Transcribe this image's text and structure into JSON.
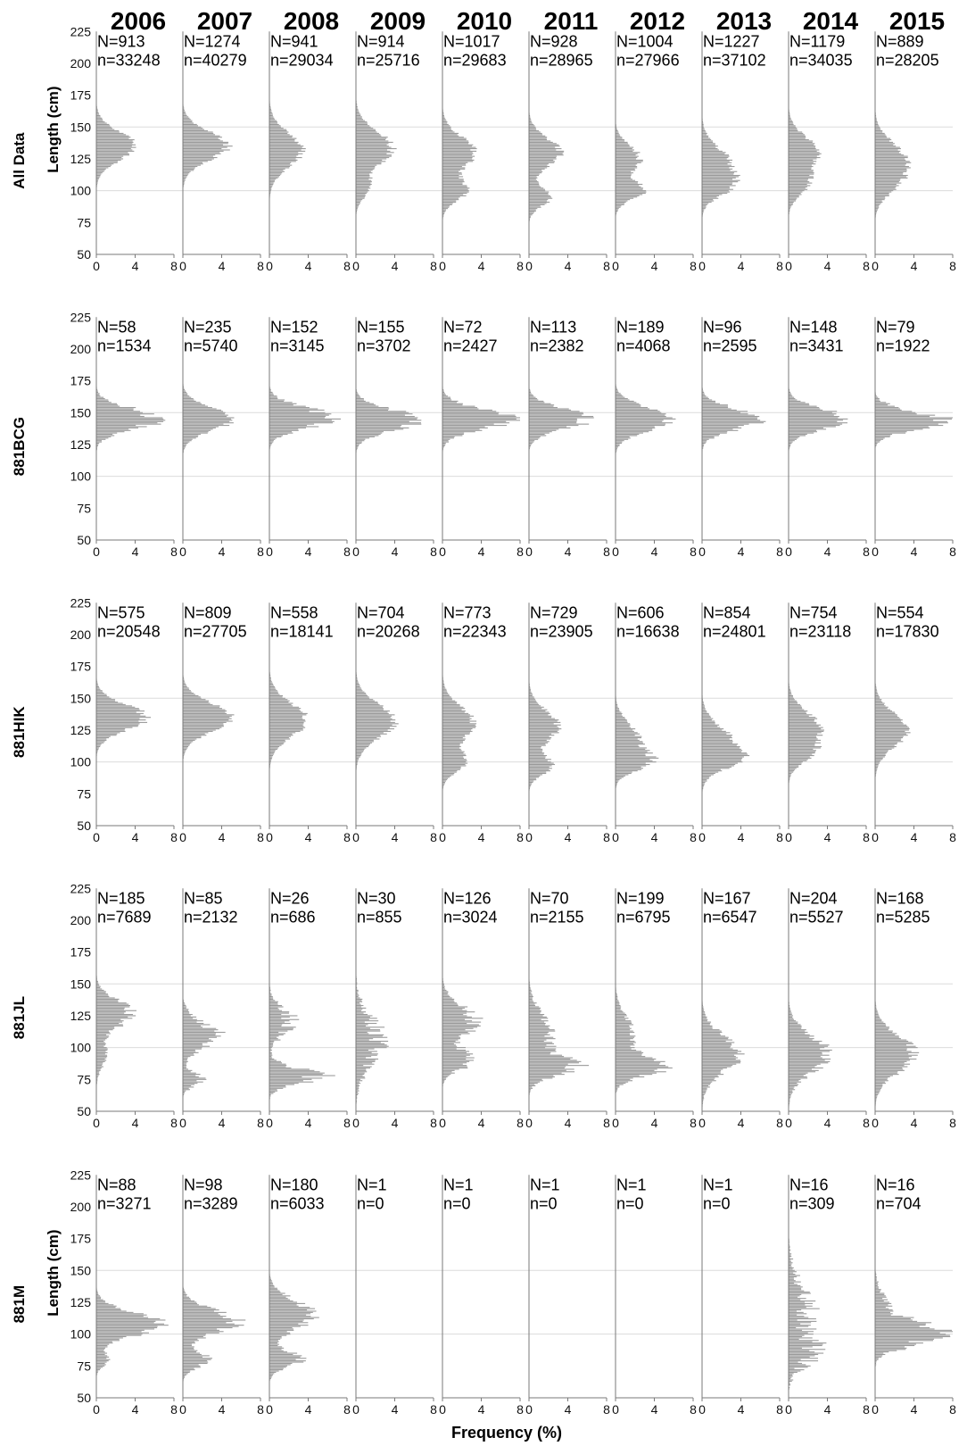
{
  "chart_data": {
    "type": "bar",
    "orientation": "horizontal",
    "years": [
      "2006",
      "2007",
      "2008",
      "2009",
      "2010",
      "2011",
      "2012",
      "2013",
      "2014",
      "2015"
    ],
    "x_title": "Frequency (%)",
    "x_ticks": [
      "0",
      "4",
      "8"
    ],
    "xlim": [
      0,
      8
    ],
    "y_title": "Length (cm)",
    "y_ticks": [
      50,
      75,
      100,
      125,
      150,
      175,
      200,
      225
    ],
    "ylim": [
      50,
      225
    ],
    "grid_lines": [
      100,
      150
    ],
    "length_range": [
      50,
      175
    ],
    "bin_width_cm": 1,
    "note": "",
    "rows": [
      {
        "label": "All Data",
        "show_ylabel": true,
        "N": [
          "N=913",
          "N=1274",
          "N=941",
          "N=914",
          "N=1017",
          "N=928",
          "N=1004",
          "N=1227",
          "N=1179",
          "N=889"
        ],
        "n": [
          "n=33248",
          "n=40279",
          "n=29034",
          "n=25716",
          "n=29683",
          "n=28965",
          "n=27966",
          "n=37102",
          "n=34035",
          "n=28205"
        ],
        "peaks": [
          [
            [
              135,
              4.0,
              11,
              0.1
            ]
          ],
          [
            [
              135,
              4.6,
              11,
              0.12
            ]
          ],
          [
            [
              132,
              3.4,
              13,
              0.12
            ]
          ],
          [
            [
              133,
              3.7,
              13,
              0.14
            ],
            [
              102,
              1.2,
              8,
              0.08
            ]
          ],
          [
            [
              130,
              3.3,
              12,
              0.14
            ],
            [
              100,
              2.4,
              8,
              0.12
            ]
          ],
          [
            [
              130,
              3.2,
              11,
              0.14
            ],
            [
              95,
              2.2,
              7,
              0.1
            ]
          ],
          [
            [
              125,
              2.5,
              10,
              0.16
            ],
            [
              100,
              2.8,
              7,
              0.12
            ]
          ],
          [
            [
              120,
              2.9,
              13,
              0.16
            ],
            [
              103,
              2.0,
              8,
              0.12
            ]
          ],
          [
            [
              130,
              3.0,
              12,
              0.14
            ],
            [
              105,
              1.8,
              9,
              0.12
            ]
          ],
          [
            [
              125,
              3.0,
              13,
              0.14
            ],
            [
              105,
              1.6,
              10,
              0.12
            ]
          ]
        ]
      },
      {
        "label": "881BCG",
        "show_ylabel": false,
        "N": [
          "N=58",
          "N=235",
          "N=152",
          "N=155",
          "N=72",
          "N=113",
          "N=189",
          "N=96",
          "N=148",
          "N=79"
        ],
        "n": [
          "n=1534",
          "n=5740",
          "n=3145",
          "n=3702",
          "n=2427",
          "n=2382",
          "n=4068",
          "n=2595",
          "n=3431",
          "n=1922"
        ],
        "peaks": [
          [
            [
              145,
              6.2,
              8,
              0.25
            ]
          ],
          [
            [
              145,
              5.0,
              9,
              0.12
            ]
          ],
          [
            [
              146,
              6.2,
              8,
              0.22
            ]
          ],
          [
            [
              144,
              6.5,
              8,
              0.2
            ]
          ],
          [
            [
              145,
              6.8,
              8,
              0.22
            ]
          ],
          [
            [
              145,
              6.0,
              8,
              0.18
            ]
          ],
          [
            [
              145,
              5.6,
              9,
              0.14
            ]
          ],
          [
            [
              145,
              6.0,
              8,
              0.22
            ]
          ],
          [
            [
              145,
              5.8,
              8,
              0.16
            ]
          ],
          [
            [
              144,
              7.0,
              7,
              0.26
            ]
          ]
        ]
      },
      {
        "label": "881HIK",
        "show_ylabel": false,
        "N": [
          "N=575",
          "N=809",
          "N=558",
          "N=704",
          "N=773",
          "N=729",
          "N=606",
          "N=854",
          "N=754",
          "N=554"
        ],
        "n": [
          "n=20548",
          "n=27705",
          "n=18141",
          "n=20268",
          "n=22343",
          "n=23905",
          "n=16638",
          "n=24801",
          "n=23118",
          "n=17830"
        ],
        "peaks": [
          [
            [
              135,
              5.0,
              10,
              0.14
            ]
          ],
          [
            [
              135,
              5.0,
              11,
              0.1
            ]
          ],
          [
            [
              133,
              3.8,
              13,
              0.12
            ]
          ],
          [
            [
              132,
              4.0,
              13,
              0.12
            ]
          ],
          [
            [
              130,
              3.2,
              13,
              0.12
            ],
            [
              100,
              2.2,
              8,
              0.1
            ]
          ],
          [
            [
              128,
              3.0,
              12,
              0.14
            ],
            [
              97,
              2.3,
              7,
              0.1
            ]
          ],
          [
            [
              118,
              2.4,
              12,
              0.16
            ],
            [
              100,
              3.0,
              7,
              0.12
            ]
          ],
          [
            [
              115,
              3.0,
              13,
              0.14
            ],
            [
              102,
              2.3,
              8,
              0.1
            ]
          ],
          [
            [
              128,
              3.0,
              12,
              0.14
            ],
            [
              108,
              2.0,
              9,
              0.12
            ]
          ],
          [
            [
              125,
              3.3,
              13,
              0.12
            ]
          ]
        ]
      },
      {
        "label": "881JL",
        "show_ylabel": false,
        "N": [
          "N=185",
          "N=85",
          "N=26",
          "N=30",
          "N=126",
          "N=70",
          "N=199",
          "N=167",
          "N=204",
          "N=168"
        ],
        "n": [
          "n=7689",
          "n=2132",
          "n=686",
          "n=855",
          "n=3024",
          "n=2155",
          "n=6795",
          "n=6547",
          "n=5527",
          "n=5285"
        ],
        "peaks": [
          [
            [
              127,
              3.6,
              10,
              0.22
            ],
            [
              95,
              1.0,
              10,
              0.12
            ]
          ],
          [
            [
              110,
              3.4,
              10,
              0.32
            ],
            [
              75,
              2.0,
              5,
              0.3
            ]
          ],
          [
            [
              120,
              2.3,
              10,
              0.45
            ],
            [
              78,
              4.8,
              6,
              0.4
            ]
          ],
          [
            [
              105,
              2.5,
              18,
              0.5
            ]
          ],
          [
            [
              120,
              3.3,
              12,
              0.32
            ],
            [
              90,
              2.8,
              7,
              0.3
            ]
          ],
          [
            [
              110,
              2.2,
              16,
              0.3
            ],
            [
              85,
              4.2,
              7,
              0.26
            ]
          ],
          [
            [
              110,
              1.8,
              14,
              0.22
            ],
            [
              85,
              4.8,
              7,
              0.16
            ]
          ],
          [
            [
              95,
              3.8,
              14,
              0.22
            ]
          ],
          [
            [
              95,
              4.0,
              14,
              0.22
            ]
          ],
          [
            [
              95,
              4.0,
              14,
              0.18
            ]
          ]
        ]
      },
      {
        "label": "881M",
        "show_ylabel": true,
        "N": [
          "N=88",
          "N=98",
          "N=180",
          "N=1",
          "N=1",
          "N=1",
          "N=1",
          "N=1",
          "N=16",
          "N=16"
        ],
        "n": [
          "n=3271",
          "n=3289",
          "n=6033",
          "n=0",
          "n=0",
          "n=0",
          "n=0",
          "n=0",
          "n=309",
          "n=704"
        ],
        "peaks": [
          [
            [
              108,
              6.5,
              9,
              0.18
            ],
            [
              80,
              1.2,
              5,
              0.15
            ]
          ],
          [
            [
              110,
              5.5,
              9,
              0.22
            ],
            [
              80,
              2.5,
              6,
              0.2
            ]
          ],
          [
            [
              115,
              4.5,
              11,
              0.22
            ],
            [
              80,
              3.2,
              6,
              0.2
            ]
          ],
          [],
          [],
          [],
          [],
          [],
          [
            [
              120,
              2.0,
              20,
              0.6
            ],
            [
              85,
              2.5,
              10,
              0.55
            ]
          ],
          [
            [
              100,
              7.0,
              8,
              0.3
            ],
            [
              120,
              1.2,
              12,
              0.4
            ]
          ]
        ]
      }
    ]
  }
}
